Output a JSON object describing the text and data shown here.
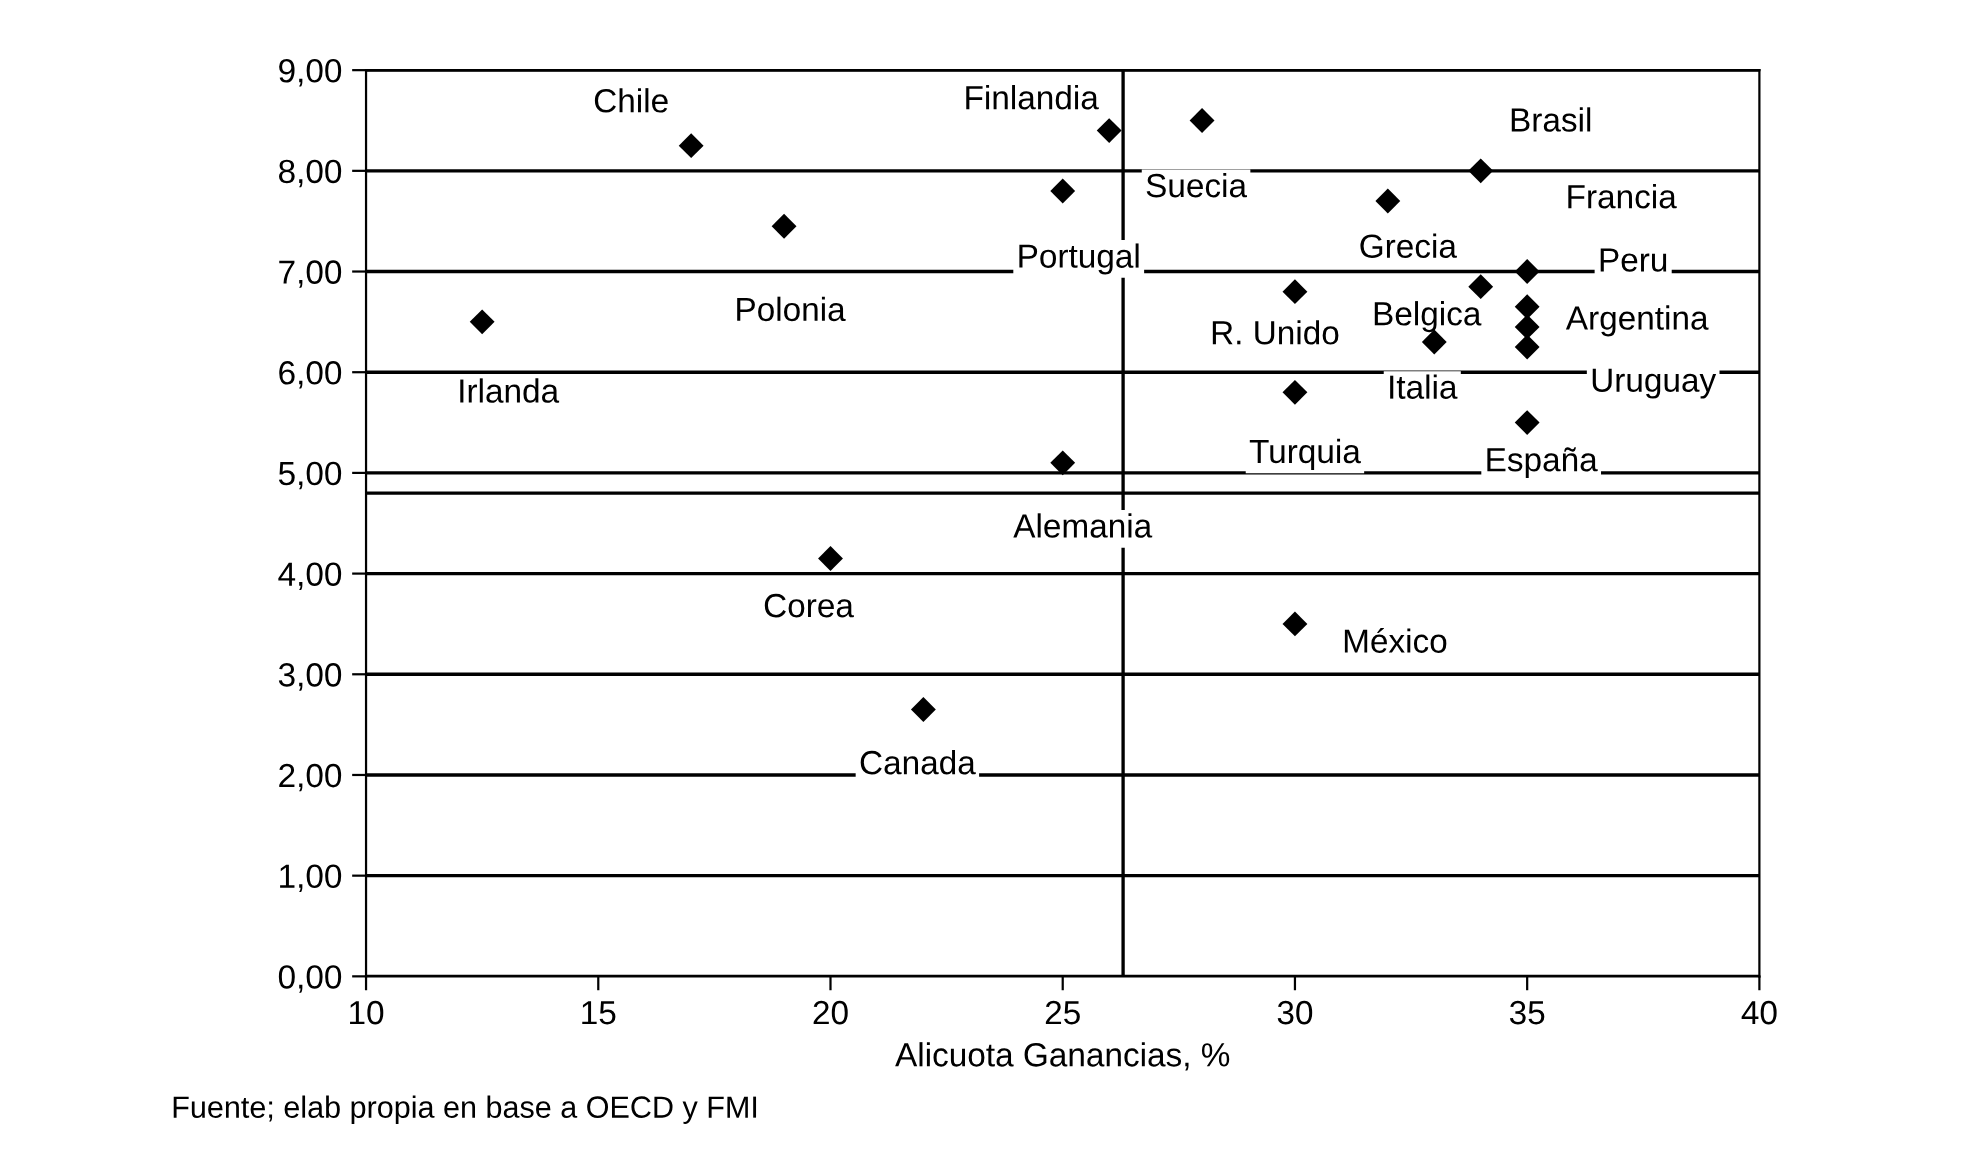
{
  "chart_data": {
    "type": "scatter",
    "xlabel": "Alicuota Ganancias, %",
    "x": [
      17,
      26,
      28,
      34,
      19,
      25,
      12.5,
      32,
      35,
      35,
      35,
      35,
      30,
      34,
      33,
      30,
      35,
      25,
      20,
      30,
      22
    ],
    "series": [
      {
        "color": "#000000",
        "values": [
          8.25,
          8.4,
          8.5,
          8.0,
          7.45,
          7.8,
          6.5,
          7.7,
          7.0,
          6.65,
          6.45,
          6.25,
          6.8,
          6.85,
          6.3,
          5.8,
          5.5,
          5.1,
          4.15,
          3.5,
          2.65
        ]
      }
    ],
    "marker": "diamond",
    "xlim": [
      10,
      40
    ],
    "xticks": [
      10,
      15,
      20,
      25,
      30,
      35,
      40
    ],
    "ylim": [
      0,
      9
    ],
    "yticks": [
      {
        "value": 0,
        "label": "0,00"
      },
      {
        "value": 1,
        "label": "1,00"
      },
      {
        "value": 2,
        "label": "2,00"
      },
      {
        "value": 3,
        "label": "3,00"
      },
      {
        "value": 4,
        "label": "4,00"
      },
      {
        "value": 5,
        "label": "5,00"
      },
      {
        "value": 6,
        "label": "6,00"
      },
      {
        "value": 7,
        "label": "7,00"
      },
      {
        "value": 8,
        "label": "8,00"
      },
      {
        "value": 9,
        "label": "9,00"
      }
    ],
    "grid": "y",
    "ref_lines": [
      {
        "axis": "x",
        "value": 26.3,
        "color": "#000000"
      },
      {
        "axis": "y",
        "value": 4.8,
        "color": "#000000"
      }
    ],
    "annotations": [
      {
        "text": "Chile",
        "x": 17,
        "y": 8.25
      },
      {
        "text": "Finlandia",
        "x": 26,
        "y": 8.4
      },
      {
        "text": "Suecia",
        "x": 28,
        "y": 8.5
      },
      {
        "text": "Brasil",
        "x": 34,
        "y": 8.0
      },
      {
        "text": "Polonia",
        "x": 19,
        "y": 7.45
      },
      {
        "text": "Portugal",
        "x": 25,
        "y": 7.8
      },
      {
        "text": "Irlanda",
        "x": 12.5,
        "y": 6.5
      },
      {
        "text": "Grecia",
        "x": 32,
        "y": 7.7
      },
      {
        "text": "Francia",
        "x": 35,
        "y": 7.0
      },
      {
        "text": "Peru",
        "x": 35,
        "y": 6.65
      },
      {
        "text": "Argentina",
        "x": 35,
        "y": 6.45
      },
      {
        "text": "Uruguay",
        "x": 35,
        "y": 6.25
      },
      {
        "text": "R. Unido",
        "x": 30,
        "y": 6.8
      },
      {
        "text": "Belgica",
        "x": 34,
        "y": 6.85
      },
      {
        "text": "Italia",
        "x": 33,
        "y": 6.3
      },
      {
        "text": "Turquia",
        "x": 30,
        "y": 5.8
      },
      {
        "text": "España",
        "x": 35,
        "y": 5.5
      },
      {
        "text": "Alemania",
        "x": 25,
        "y": 5.1
      },
      {
        "text": "Corea",
        "x": 20,
        "y": 4.15
      },
      {
        "text": "México",
        "x": 30,
        "y": 3.5
      },
      {
        "text": "Canada",
        "x": 22,
        "y": 2.65
      },
      "Fuente; elab propia en base a OECD y FMI"
    ]
  }
}
